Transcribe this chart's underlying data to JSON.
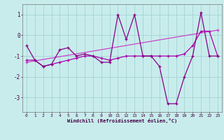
{
  "xlabel": "Windchill (Refroidissement éolien,°C)",
  "bg_color": "#c8ecec",
  "grid_color": "#9ecece",
  "line_color1": "#880088",
  "line_color2": "#aa00aa",
  "line_color3": "#cc44cc",
  "xlim": [
    -0.5,
    23.5
  ],
  "ylim": [
    -3.7,
    1.5
  ],
  "x_ticks": [
    0,
    1,
    2,
    3,
    4,
    5,
    6,
    7,
    8,
    9,
    10,
    11,
    12,
    13,
    14,
    15,
    16,
    17,
    18,
    19,
    20,
    21,
    22,
    23
  ],
  "y_ticks": [
    -3,
    -2,
    -1,
    0,
    1
  ],
  "line1_x": [
    0,
    1,
    2,
    3,
    4,
    5,
    6,
    7,
    8,
    9,
    10,
    11,
    12,
    13,
    14,
    15,
    16,
    17,
    18,
    19,
    20,
    21,
    22,
    23
  ],
  "line1_y": [
    -0.5,
    -1.2,
    -1.5,
    -1.4,
    -0.7,
    -0.6,
    -1.0,
    -0.9,
    -1.0,
    -1.3,
    -1.3,
    1.0,
    -0.2,
    1.0,
    -1.0,
    -1.0,
    -1.5,
    -3.3,
    -3.3,
    -2.0,
    -1.0,
    1.1,
    -1.0,
    -1.0
  ],
  "line2_x": [
    0,
    1,
    2,
    3,
    4,
    5,
    6,
    7,
    8,
    9,
    10,
    11,
    12,
    13,
    14,
    15,
    16,
    17,
    18,
    19,
    20,
    21,
    22,
    23
  ],
  "line2_y": [
    -1.2,
    -1.2,
    -1.5,
    -1.4,
    -1.3,
    -1.2,
    -1.1,
    -1.0,
    -1.0,
    -1.1,
    -1.2,
    -1.1,
    -1.0,
    -1.0,
    -1.0,
    -1.0,
    -1.0,
    -1.0,
    -1.0,
    -0.9,
    -0.5,
    0.2,
    0.2,
    -1.0
  ],
  "line3_x": [
    0,
    23
  ],
  "line3_y": [
    -1.3,
    0.25
  ]
}
